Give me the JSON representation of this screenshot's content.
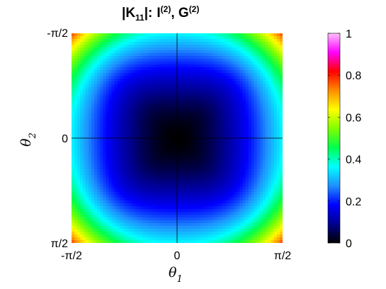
{
  "chart_data": {
    "type": "heatmap",
    "title": {
      "abs_open": "|K",
      "abs_sub": "11",
      "abs_close": "|:",
      "i_label": "I",
      "i_sup": "(2)",
      "sep": ", ",
      "g_label": "G",
      "g_sup": "(2)"
    },
    "xlabel": {
      "symbol": "θ",
      "subscript": "1"
    },
    "ylabel": {
      "symbol": "θ",
      "subscript": "2"
    },
    "xlim": [
      -1.5708,
      1.5708
    ],
    "ylim": [
      -1.5708,
      1.5708
    ],
    "x_ticks": [
      {
        "value": -1.5708,
        "label": "-π/2"
      },
      {
        "value": 0,
        "label": "0"
      },
      {
        "value": 1.5708,
        "label": "π/2"
      }
    ],
    "y_ticks": [
      {
        "value": 1.5708,
        "label": "-π/2"
      },
      {
        "value": 0,
        "label": "0"
      },
      {
        "value": -1.5708,
        "label": "π/2"
      }
    ],
    "zero_lines": true,
    "colormap": [
      "#000000",
      "#00008f",
      "#0000ff",
      "#1e90ff",
      "#00ffff",
      "#00ff4d",
      "#7fff00",
      "#ffff00",
      "#ff8c00",
      "#ff0000",
      "#ff00ff",
      "#ffc0ff"
    ],
    "clim": [
      0,
      1
    ],
    "colorbar_ticks": [
      {
        "value": 0,
        "label": "0"
      },
      {
        "value": 0.2,
        "label": "0.2"
      },
      {
        "value": 0.4,
        "label": "0.4"
      },
      {
        "value": 0.6,
        "label": "0.6"
      },
      {
        "value": 0.8,
        "label": "0.8"
      },
      {
        "value": 1,
        "label": "1"
      }
    ],
    "field": {
      "description_values": {
        "center": 0.0,
        "edge_mid": 0.38,
        "corner": 0.65
      },
      "contour_levels": [
        0.05,
        0.1,
        0.15,
        0.2,
        0.25,
        0.3,
        0.35,
        0.4,
        0.45,
        0.5,
        0.55,
        0.6,
        0.65
      ]
    }
  }
}
